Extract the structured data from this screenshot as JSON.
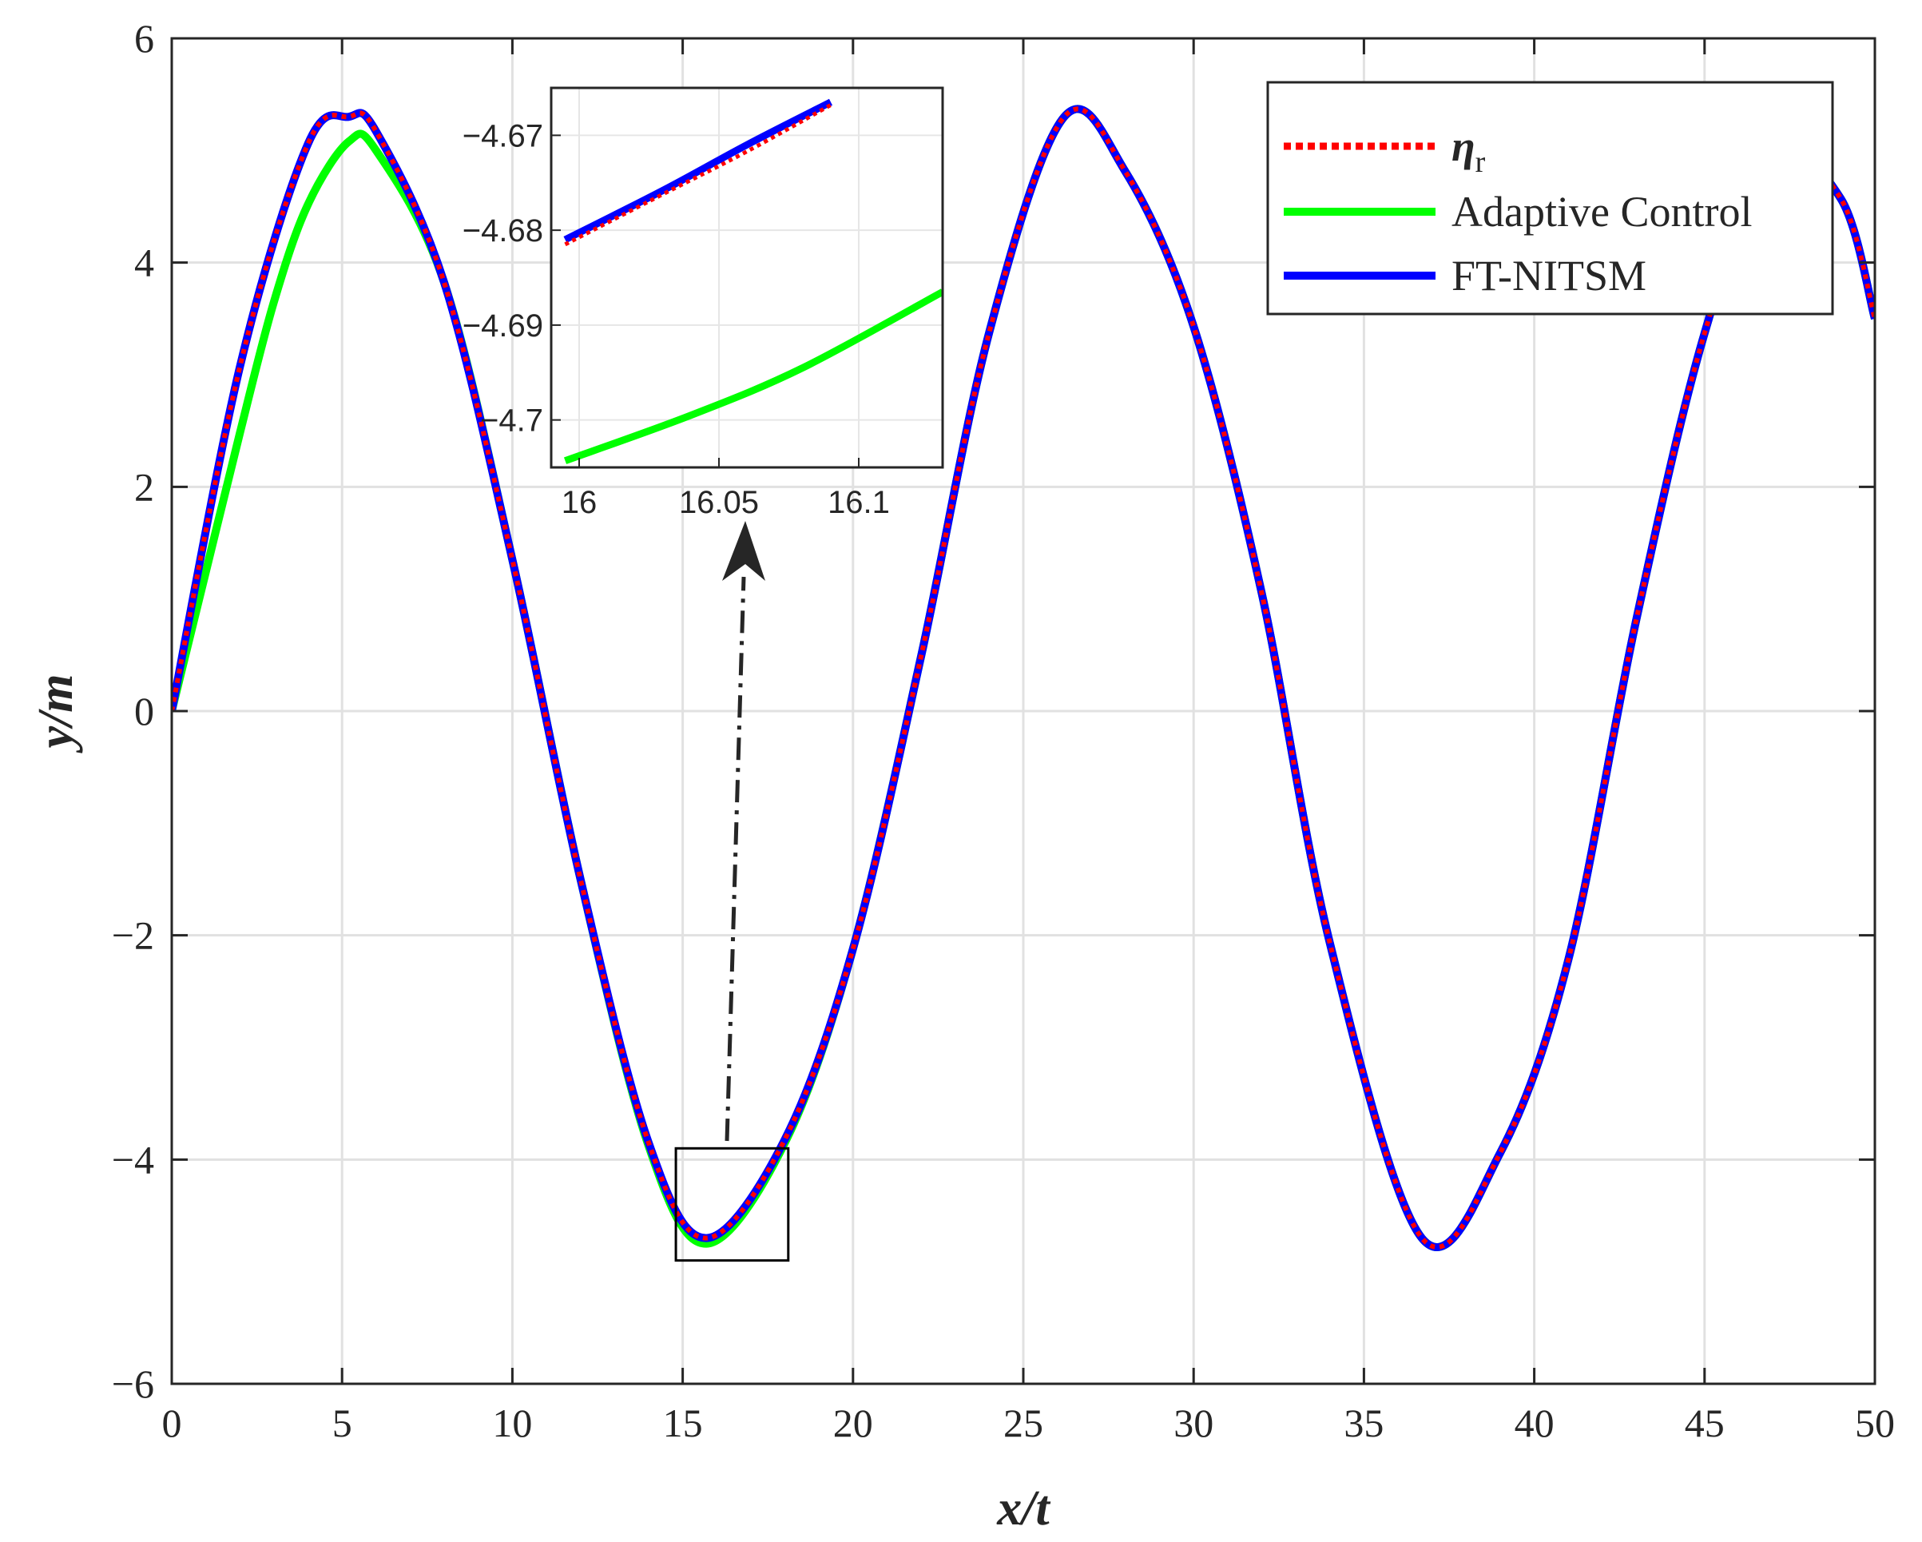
{
  "chart_data": {
    "type": "line",
    "title": "",
    "xlabel": "x/t",
    "ylabel": "y/m",
    "xlim": [
      0,
      50
    ],
    "ylim": [
      -6,
      6
    ],
    "xticks": [
      0,
      5,
      10,
      15,
      20,
      25,
      30,
      35,
      40,
      45,
      50
    ],
    "yticks": [
      -6,
      -4,
      -2,
      0,
      2,
      4,
      6
    ],
    "xtick_labels": [
      "0",
      "5",
      "10",
      "15",
      "20",
      "25",
      "30",
      "35",
      "40",
      "45",
      "50"
    ],
    "ytick_labels": [
      "−6",
      "−4",
      "−2",
      "0",
      "2",
      "4",
      "6"
    ],
    "grid": true,
    "legend_position": "top-right",
    "legend": [
      {
        "label": "η",
        "subscript": "r",
        "color": "#ff0000",
        "style": "dotted"
      },
      {
        "label": "Adaptive Control",
        "color": "#00ff00",
        "style": "solid"
      },
      {
        "label": "FT-NITSM",
        "color": "#0000ff",
        "style": "solid"
      }
    ],
    "series": [
      {
        "name": "ηr",
        "color": "#ff0000",
        "style": "dotted",
        "x": [
          0,
          2,
          4,
          5.2,
          6,
          8,
          10,
          12,
          14,
          15.7,
          18,
          20,
          22,
          24,
          26.2,
          28,
          30,
          32,
          34,
          36.7,
          39,
          41,
          43,
          45,
          47,
          49,
          50
        ],
        "y": [
          0,
          3.07,
          5.06,
          5.3,
          5.17,
          3.82,
          1.35,
          -1.5,
          -3.85,
          -4.7,
          -3.82,
          -2.12,
          0.49,
          3.38,
          5.3,
          4.81,
          3.43,
          1.05,
          -2.07,
          -4.7,
          -3.94,
          -2.22,
          0.82,
          3.37,
          4.95,
          4.57,
          3.5
        ]
      },
      {
        "name": "Adaptive Control",
        "color": "#00ff00",
        "style": "solid",
        "x": [
          0,
          1,
          2,
          3,
          4,
          5.2,
          6,
          8,
          10,
          12,
          14,
          15.7,
          18,
          20,
          22,
          24,
          26.2,
          28,
          30,
          32,
          34,
          36.7,
          39,
          41,
          43,
          45,
          47,
          49,
          50
        ],
        "y": [
          0,
          1.24,
          2.48,
          3.65,
          4.52,
          5.08,
          5.0,
          3.82,
          1.35,
          -1.5,
          -3.88,
          -4.75,
          -3.85,
          -2.12,
          0.49,
          3.38,
          5.3,
          4.81,
          3.43,
          1.05,
          -2.07,
          -4.7,
          -3.94,
          -2.22,
          0.82,
          3.37,
          4.95,
          4.57,
          3.5
        ]
      },
      {
        "name": "FT-NITSM",
        "color": "#0000ff",
        "style": "solid",
        "x": [
          0,
          2,
          4,
          5.2,
          6,
          8,
          10,
          12,
          14,
          15.7,
          18,
          20,
          22,
          24,
          26.2,
          28,
          30,
          32,
          34,
          36.7,
          39,
          41,
          43,
          45,
          47,
          49,
          50
        ],
        "y": [
          0,
          3.07,
          5.06,
          5.3,
          5.17,
          3.82,
          1.35,
          -1.5,
          -3.85,
          -4.7,
          -3.82,
          -2.12,
          0.49,
          3.38,
          5.3,
          4.81,
          3.43,
          1.05,
          -2.07,
          -4.7,
          -3.94,
          -2.22,
          0.82,
          3.37,
          4.95,
          4.57,
          3.5
        ]
      }
    ],
    "zoom_region": {
      "xlim": [
        14.8,
        18.1
      ],
      "ylim": [
        -4.9,
        -3.9
      ]
    },
    "inset": {
      "xlim": [
        15.99,
        16.13
      ],
      "ylim": [
        -4.705,
        -4.665
      ],
      "xticks": [
        16,
        16.05,
        16.1
      ],
      "yticks": [
        -4.67,
        -4.68,
        -4.69,
        -4.7
      ],
      "xtick_labels": [
        "16",
        "16.05",
        "16.1"
      ],
      "ytick_labels": [
        "−4.67",
        "−4.68",
        "−4.69",
        "−4.7"
      ],
      "series": [
        {
          "name": "ηr",
          "color": "#ff0000",
          "style": "dotted",
          "x": [
            15.995,
            16.03,
            16.06,
            16.09
          ],
          "y": [
            -4.6815,
            -4.6762,
            -4.6717,
            -4.6668
          ]
        },
        {
          "name": "Adaptive Control",
          "color": "#00ff00",
          "style": "solid",
          "x": [
            15.995,
            16.04,
            16.08,
            16.13
          ],
          "y": [
            -4.7043,
            -4.6995,
            -4.6945,
            -4.6865
          ]
        },
        {
          "name": "FT-NITSM",
          "color": "#0000ff",
          "style": "solid",
          "x": [
            15.995,
            16.03,
            16.06,
            16.09
          ],
          "y": [
            -4.681,
            -4.6758,
            -4.671,
            -4.6665
          ]
        }
      ]
    }
  }
}
